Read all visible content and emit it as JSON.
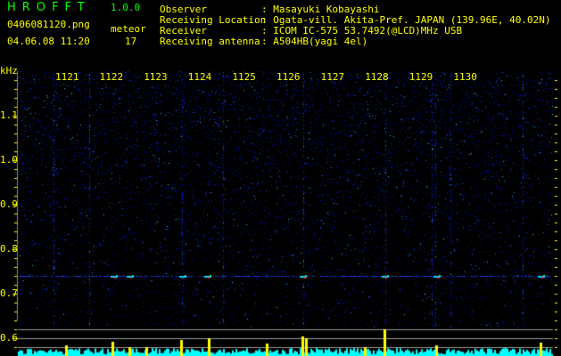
{
  "header": {
    "app_title": "HROFFT",
    "version": "1.0.0",
    "filename": "0406081120.png",
    "datetime": "04.06.08 11:20",
    "meteor_label": "meteor",
    "meteor_count": "17",
    "info": [
      {
        "label": "Observer",
        "value": ": Masayuki Kobayashi"
      },
      {
        "label": "Receiving Location",
        "value": ": Ogata-vill. Akita-Pref. JAPAN (139.96E, 40.02N)"
      },
      {
        "label": "Receiver",
        "value": ": ICOM IC-575 53.7492(@LCD)MHz USB"
      },
      {
        "label": "Receiving antenna",
        "value": ": A504HB(yagi 4el)"
      }
    ]
  },
  "chart_data": {
    "type": "heatmap",
    "ylabel": "kHz",
    "y_ticks": [
      "1.1",
      "1.0",
      "0.9",
      "0.8",
      "0.7",
      "0.6"
    ],
    "ylim": [
      0.56,
      1.2
    ],
    "x_ticks": [
      "1121",
      "1122",
      "1123",
      "1124",
      "1125",
      "1126",
      "1127",
      "1128",
      "1129",
      "1130"
    ],
    "xlim": [
      "1120",
      "1130"
    ],
    "colors": {
      "background": "#000000",
      "noise": "#0000cc",
      "strong": "#00ffff",
      "peak": "#ffff00",
      "reference_lines": "#999999",
      "labels": "#ffff00"
    }
  }
}
